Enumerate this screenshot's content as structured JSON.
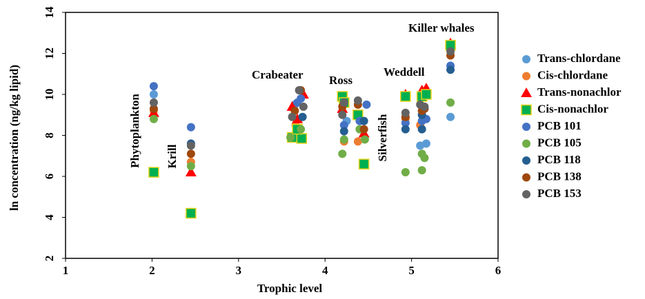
{
  "chart_data": {
    "type": "scatter",
    "x_label": "Trophic level",
    "y_label": "ln concentration (ng/kg lipid)",
    "xlim": [
      1,
      6
    ],
    "xticks": [
      1,
      2,
      3,
      4,
      5,
      6
    ],
    "ylim": [
      2,
      14
    ],
    "yticks": [
      2,
      4,
      6,
      8,
      10,
      12,
      14
    ],
    "annotations": [
      "Phytoplankton",
      "Krill",
      "Crabeater",
      "Ross",
      "Silverfish",
      "Weddell",
      "Killer whales"
    ],
    "series": [
      {
        "name": "Trans-chlordane",
        "color": "#5b9bd5",
        "marker": "circle",
        "x": [
          2.02,
          3.65,
          4.25,
          5.1,
          5.17,
          5.45
        ],
        "values": [
          10.0,
          9.5,
          8.7,
          7.5,
          7.6,
          8.9
        ]
      },
      {
        "name": "Cis-chlordane",
        "color": "#ed7d31",
        "marker": "circle",
        "x": [
          2.02,
          2.45,
          3.66,
          4.22,
          4.38,
          4.93,
          5.1,
          5.45
        ],
        "values": [
          9.2,
          6.7,
          8.5,
          7.7,
          7.7,
          8.8,
          8.5,
          12.2
        ]
      },
      {
        "name": "Trans-nonachlor",
        "color": "#ff0000",
        "marker": "triangle",
        "x": [
          2.02,
          2.45,
          3.62,
          3.75,
          3.68,
          4.45,
          4.2,
          5.12,
          5.17,
          4.93,
          5.45
        ],
        "values": [
          9.1,
          6.2,
          9.4,
          10.0,
          8.8,
          8.1,
          9.3,
          10.2,
          10.3,
          10.0,
          12.5
        ]
      },
      {
        "name": "Cis-nonachlor",
        "color": "#00b050",
        "marker": "square",
        "x": [
          2.02,
          2.45,
          3.62,
          3.73,
          3.68,
          4.2,
          4.22,
          4.38,
          4.45,
          4.93,
          5.12,
          5.17,
          5.45
        ],
        "values": [
          6.2,
          4.2,
          7.9,
          7.85,
          8.3,
          9.9,
          9.6,
          9.0,
          6.6,
          9.9,
          9.9,
          10.0,
          12.4
        ]
      },
      {
        "name": "PCB 101",
        "color": "#4472c4",
        "marker": "circle",
        "x": [
          2.02,
          2.45,
          3.68,
          3.72,
          4.48,
          4.22,
          4.4,
          4.93,
          5.12,
          5.17,
          5.45
        ],
        "values": [
          10.4,
          8.4,
          9.6,
          9.8,
          9.5,
          8.5,
          8.7,
          8.6,
          8.7,
          8.8,
          11.4
        ]
      },
      {
        "name": "PCB 105",
        "color": "#70ad47",
        "marker": "circle",
        "x": [
          2.02,
          2.45,
          3.6,
          3.72,
          4.2,
          4.22,
          4.46,
          4.4,
          4.93,
          5.12,
          5.12,
          5.15,
          5.45
        ],
        "values": [
          8.8,
          6.5,
          7.9,
          8.3,
          7.1,
          7.8,
          7.8,
          8.3,
          6.2,
          6.3,
          7.1,
          6.9,
          9.6
        ]
      },
      {
        "name": "PCB 118",
        "color": "#255e91",
        "marker": "circle",
        "x": [
          2.45,
          3.74,
          4.22,
          4.45,
          4.93,
          5.12,
          5.12,
          5.45
        ],
        "values": [
          7.6,
          8.9,
          8.2,
          8.7,
          8.3,
          8.3,
          9.0,
          11.2
        ]
      },
      {
        "name": "PCB 138",
        "color": "#9e480e",
        "marker": "circle",
        "x": [
          2.02,
          2.45,
          3.72,
          3.65,
          4.2,
          4.38,
          4.45,
          4.93,
          5.12,
          5.15,
          5.45
        ],
        "values": [
          9.3,
          7.1,
          10.2,
          9.2,
          9.4,
          9.5,
          8.3,
          8.9,
          9.2,
          9.3,
          11.9
        ]
      },
      {
        "name": "PCB 153",
        "color": "#636363",
        "marker": "circle",
        "x": [
          2.02,
          2.45,
          3.7,
          3.62,
          3.75,
          4.2,
          4.38,
          4.22,
          4.93,
          5.15,
          5.1,
          5.45
        ],
        "values": [
          9.6,
          7.5,
          10.2,
          8.9,
          9.4,
          9.0,
          9.7,
          9.6,
          9.1,
          9.4,
          9.5,
          12.1
        ]
      }
    ]
  }
}
